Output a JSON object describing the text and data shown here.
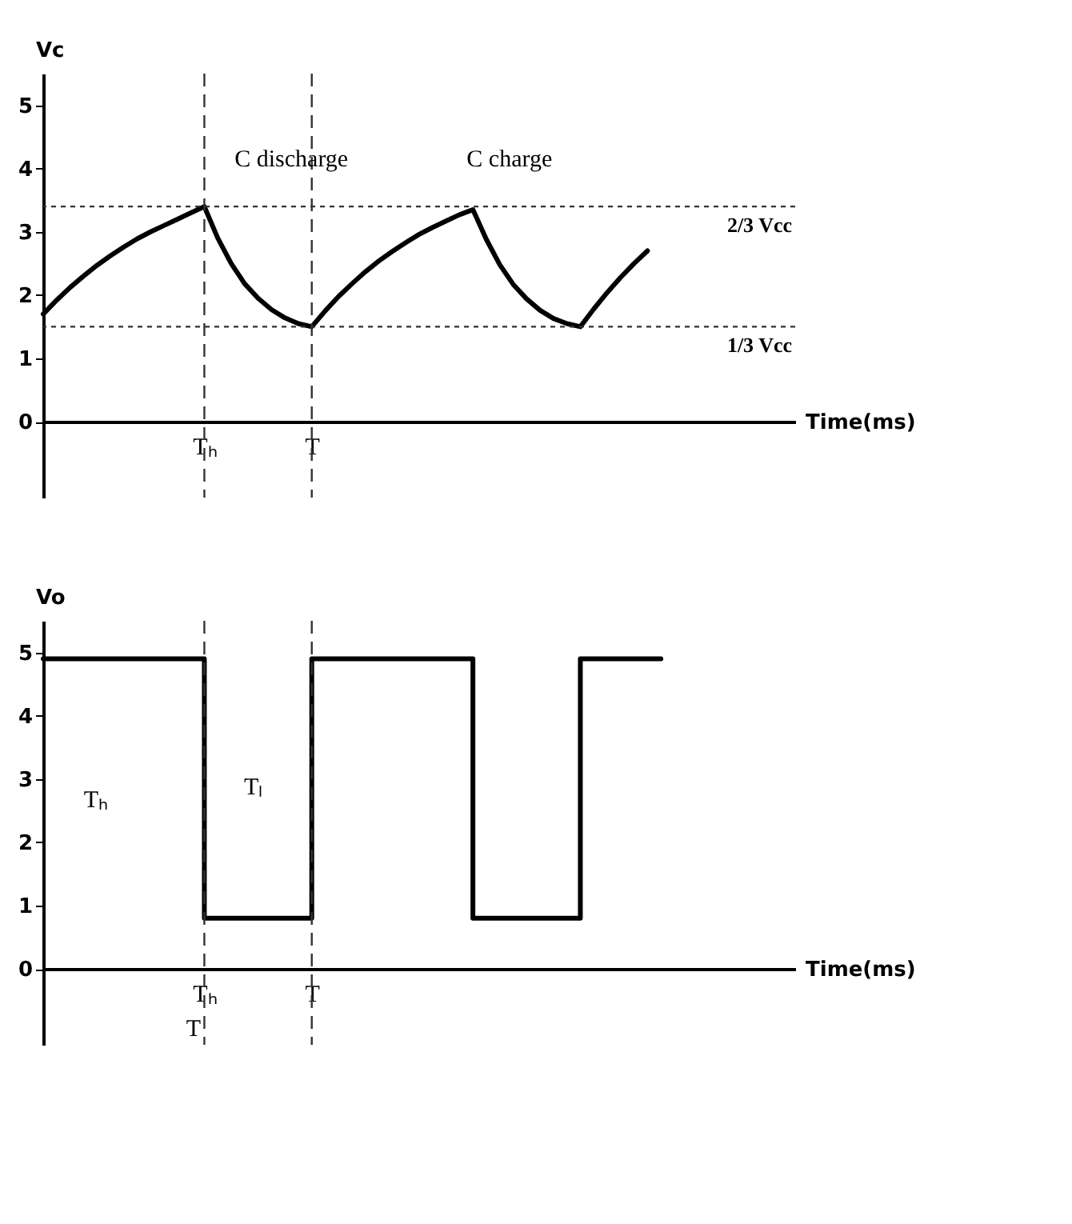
{
  "chart_data": [
    {
      "type": "line",
      "xlabel": "Time(ms)",
      "ylabel": "Vc",
      "categories": [
        null,
        null,
        null,
        null,
        null,
        null,
        null,
        null,
        null,
        null,
        null,
        null,
        "Tₕ",
        null,
        null,
        null,
        null,
        null,
        null,
        null,
        "T",
        null,
        null,
        null,
        null,
        null,
        null,
        null,
        null,
        null,
        null,
        null,
        null,
        null,
        null,
        null,
        null,
        null,
        null,
        null,
        null,
        null,
        null,
        null,
        null,
        null,
        null,
        null,
        null,
        null,
        null,
        null,
        null,
        null,
        null,
        null,
        null
      ],
      "ylim": [
        -1.2,
        5.5
      ],
      "yticks": [
        0,
        1,
        2,
        3,
        4,
        5
      ],
      "series": [
        {
          "color": "#000000",
          "values": [
            1.7,
            1.92,
            2.12,
            2.3,
            2.47,
            2.62,
            2.76,
            2.89,
            3.0,
            3.1,
            3.2,
            3.3,
            3.4,
            2.9,
            2.5,
            2.18,
            1.95,
            1.77,
            1.64,
            1.55,
            1.5,
            1.75,
            1.98,
            2.18,
            2.37,
            2.54,
            2.69,
            2.83,
            2.96,
            3.07,
            3.17,
            3.27,
            3.35,
            2.88,
            2.48,
            2.17,
            1.94,
            1.76,
            1.63,
            1.55,
            1.5,
            1.78,
            2.04,
            2.28,
            2.5,
            2.7,
            null,
            null,
            null,
            null,
            null,
            null,
            null,
            null,
            null,
            null,
            null
          ]
        }
      ],
      "ref_lines": [
        {
          "axis": "y",
          "value": 3.4,
          "label": "2/3 Vcc",
          "color": "#333333",
          "line_style": "dotted"
        },
        {
          "axis": "y",
          "value": 1.5,
          "label": "1/3 Vcc",
          "color": "#333333",
          "line_style": "dotted"
        },
        {
          "axis": "x",
          "value": "Tₕ",
          "color": "#333333",
          "line_style": "dashed"
        },
        {
          "axis": "x",
          "value": "T",
          "color": "#333333",
          "line_style": "dashed"
        }
      ],
      "annotations": [
        "C discharge",
        "C charge"
      ],
      "grid": false
    },
    {
      "type": "step",
      "xlabel": "Time(ms)",
      "ylabel": "Vo",
      "categories": [
        null,
        null,
        null,
        null,
        null,
        null,
        null,
        null,
        null,
        null,
        null,
        null,
        "Tₕ",
        null,
        null,
        null,
        null,
        null,
        null,
        null,
        "T",
        null,
        null,
        null,
        null,
        null,
        null,
        null,
        null,
        null,
        null,
        null,
        null,
        null,
        null,
        null,
        null,
        null,
        null,
        null,
        null,
        null,
        null,
        null,
        null,
        null,
        null,
        null,
        null,
        null,
        null,
        null,
        null,
        null,
        null,
        null,
        null
      ],
      "ylim": [
        -1.2,
        5.5
      ],
      "yticks": [
        0,
        1,
        2,
        3,
        4,
        5
      ],
      "series": [
        {
          "color": "#000000",
          "values": [
            4.9,
            4.9,
            4.9,
            4.9,
            4.9,
            4.9,
            4.9,
            4.9,
            4.9,
            4.9,
            4.9,
            4.9,
            0.8,
            0.8,
            0.8,
            0.8,
            0.8,
            0.8,
            0.8,
            0.8,
            4.9,
            4.9,
            4.9,
            4.9,
            4.9,
            4.9,
            4.9,
            4.9,
            4.9,
            4.9,
            4.9,
            4.9,
            0.8,
            0.8,
            0.8,
            0.8,
            0.8,
            0.8,
            0.8,
            0.8,
            4.9,
            4.9,
            4.9,
            4.9,
            4.9,
            4.9,
            4.9,
            null,
            null,
            null,
            null,
            null,
            null,
            null,
            null,
            null,
            null
          ]
        }
      ],
      "ref_lines": [
        {
          "axis": "x",
          "value": "Tₕ",
          "color": "#333333",
          "line_style": "dashed"
        },
        {
          "axis": "x",
          "value": "T",
          "color": "#333333",
          "line_style": "dashed"
        }
      ],
      "annotations": [
        "Tₕ",
        "Tₗ",
        "T"
      ],
      "grid": false
    }
  ]
}
